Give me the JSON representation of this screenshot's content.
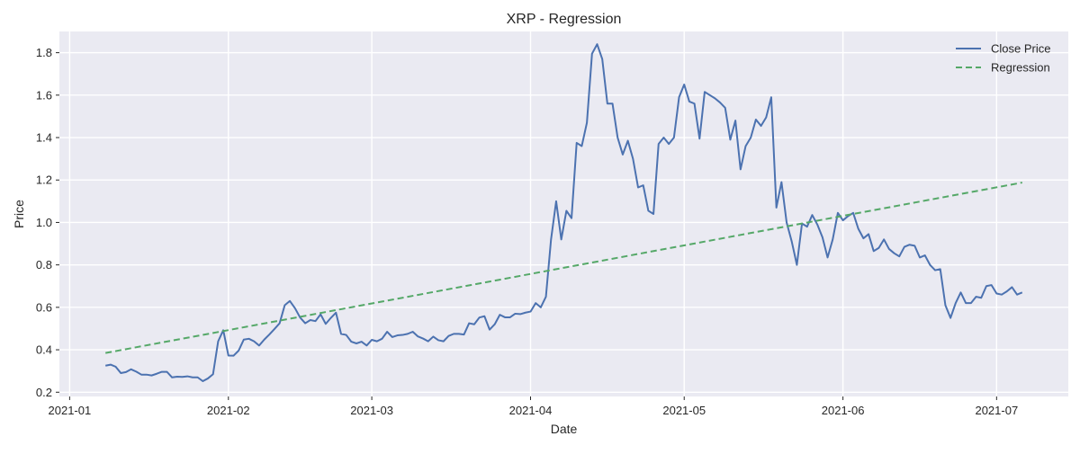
{
  "chart_data": {
    "type": "line",
    "title": "XRP - Regression",
    "xlabel": "Date",
    "ylabel": "Price",
    "xlim": [
      "2020-12-30",
      "2021-07-15"
    ],
    "ylim": [
      0.18,
      1.9
    ],
    "x_ticks": [
      "2021-01",
      "2021-02",
      "2021-03",
      "2021-04",
      "2021-05",
      "2021-06",
      "2021-07"
    ],
    "y_ticks": [
      "0.2",
      "0.4",
      "0.6",
      "0.8",
      "1.0",
      "1.2",
      "1.4",
      "1.6",
      "1.8"
    ],
    "grid": true,
    "legend_position": "top-right",
    "background_color": "#eaeaf2",
    "series": [
      {
        "name": "Close Price",
        "color": "#4c72b0",
        "style": "solid",
        "x": [
          "2021-01-08",
          "2021-01-09",
          "2021-01-10",
          "2021-01-11",
          "2021-01-12",
          "2021-01-13",
          "2021-01-14",
          "2021-01-15",
          "2021-01-16",
          "2021-01-17",
          "2021-01-18",
          "2021-01-19",
          "2021-01-20",
          "2021-01-21",
          "2021-01-22",
          "2021-01-23",
          "2021-01-24",
          "2021-01-25",
          "2021-01-26",
          "2021-01-27",
          "2021-01-28",
          "2021-01-29",
          "2021-01-30",
          "2021-01-31",
          "2021-02-01",
          "2021-02-02",
          "2021-02-03",
          "2021-02-04",
          "2021-02-05",
          "2021-02-06",
          "2021-02-07",
          "2021-02-08",
          "2021-02-09",
          "2021-02-10",
          "2021-02-11",
          "2021-02-12",
          "2021-02-13",
          "2021-02-14",
          "2021-02-15",
          "2021-02-16",
          "2021-02-17",
          "2021-02-18",
          "2021-02-19",
          "2021-02-20",
          "2021-02-21",
          "2021-02-22",
          "2021-02-23",
          "2021-02-24",
          "2021-02-25",
          "2021-02-26",
          "2021-02-27",
          "2021-02-28",
          "2021-03-01",
          "2021-03-02",
          "2021-03-03",
          "2021-03-04",
          "2021-03-05",
          "2021-03-06",
          "2021-03-07",
          "2021-03-08",
          "2021-03-09",
          "2021-03-10",
          "2021-03-11",
          "2021-03-12",
          "2021-03-13",
          "2021-03-14",
          "2021-03-15",
          "2021-03-16",
          "2021-03-17",
          "2021-03-18",
          "2021-03-19",
          "2021-03-20",
          "2021-03-21",
          "2021-03-22",
          "2021-03-23",
          "2021-03-24",
          "2021-03-25",
          "2021-03-26",
          "2021-03-27",
          "2021-03-28",
          "2021-03-29",
          "2021-03-30",
          "2021-03-31",
          "2021-04-01",
          "2021-04-02",
          "2021-04-03",
          "2021-04-04",
          "2021-04-05",
          "2021-04-06",
          "2021-04-07",
          "2021-04-08",
          "2021-04-09",
          "2021-04-10",
          "2021-04-11",
          "2021-04-12",
          "2021-04-13",
          "2021-04-14",
          "2021-04-15",
          "2021-04-16",
          "2021-04-17",
          "2021-04-18",
          "2021-04-19",
          "2021-04-20",
          "2021-04-21",
          "2021-04-22",
          "2021-04-23",
          "2021-04-24",
          "2021-04-25",
          "2021-04-26",
          "2021-04-27",
          "2021-04-28",
          "2021-04-29",
          "2021-04-30",
          "2021-05-01",
          "2021-05-02",
          "2021-05-03",
          "2021-05-04",
          "2021-05-05",
          "2021-05-06",
          "2021-05-07",
          "2021-05-08",
          "2021-05-09",
          "2021-05-10",
          "2021-05-11",
          "2021-05-12",
          "2021-05-13",
          "2021-05-14",
          "2021-05-15",
          "2021-05-16",
          "2021-05-17",
          "2021-05-18",
          "2021-05-19",
          "2021-05-20",
          "2021-05-21",
          "2021-05-22",
          "2021-05-23",
          "2021-05-24",
          "2021-05-25",
          "2021-05-26",
          "2021-05-27",
          "2021-05-28",
          "2021-05-29",
          "2021-05-30",
          "2021-05-31",
          "2021-06-01",
          "2021-06-02",
          "2021-06-03",
          "2021-06-04",
          "2021-06-05",
          "2021-06-06",
          "2021-06-07",
          "2021-06-08",
          "2021-06-09",
          "2021-06-10",
          "2021-06-11",
          "2021-06-12",
          "2021-06-13",
          "2021-06-14",
          "2021-06-15",
          "2021-06-16",
          "2021-06-17",
          "2021-06-18",
          "2021-06-19",
          "2021-06-20",
          "2021-06-21",
          "2021-06-22",
          "2021-06-23",
          "2021-06-24",
          "2021-06-25",
          "2021-06-26",
          "2021-06-27",
          "2021-06-28",
          "2021-06-29",
          "2021-06-30",
          "2021-07-01",
          "2021-07-02",
          "2021-07-03",
          "2021-07-04",
          "2021-07-05",
          "2021-07-06"
        ],
        "values": [
          0.325,
          0.33,
          0.32,
          0.29,
          0.295,
          0.308,
          0.297,
          0.283,
          0.283,
          0.279,
          0.287,
          0.296,
          0.296,
          0.27,
          0.273,
          0.272,
          0.275,
          0.27,
          0.27,
          0.252,
          0.265,
          0.285,
          0.44,
          0.492,
          0.373,
          0.372,
          0.396,
          0.448,
          0.452,
          0.44,
          0.42,
          0.448,
          0.472,
          0.498,
          0.525,
          0.61,
          0.63,
          0.596,
          0.552,
          0.525,
          0.54,
          0.535,
          0.567,
          0.522,
          0.55,
          0.575,
          0.475,
          0.47,
          0.438,
          0.43,
          0.438,
          0.42,
          0.447,
          0.44,
          0.452,
          0.485,
          0.46,
          0.468,
          0.47,
          0.475,
          0.485,
          0.463,
          0.453,
          0.44,
          0.462,
          0.445,
          0.44,
          0.465,
          0.475,
          0.475,
          0.472,
          0.525,
          0.52,
          0.552,
          0.558,
          0.495,
          0.52,
          0.565,
          0.553,
          0.553,
          0.57,
          0.568,
          0.575,
          0.58,
          0.62,
          0.6,
          0.65,
          0.92,
          1.1,
          0.92,
          1.055,
          1.02,
          1.375,
          1.36,
          1.47,
          1.795,
          1.84,
          1.77,
          1.56,
          1.56,
          1.4,
          1.32,
          1.385,
          1.3,
          1.165,
          1.175,
          1.055,
          1.04,
          1.37,
          1.4,
          1.37,
          1.4,
          1.59,
          1.65,
          1.57,
          1.56,
          1.395,
          1.615,
          1.6,
          1.585,
          1.565,
          1.54,
          1.39,
          1.48,
          1.25,
          1.36,
          1.4,
          1.485,
          1.455,
          1.495,
          1.59,
          1.07,
          1.19,
          1.0,
          0.91,
          0.8,
          0.995,
          0.98,
          1.035,
          0.99,
          0.93,
          0.835,
          0.92,
          1.045,
          1.01,
          1.03,
          1.045,
          0.97,
          0.925,
          0.945,
          0.865,
          0.88,
          0.92,
          0.875,
          0.855,
          0.84,
          0.885,
          0.895,
          0.89,
          0.835,
          0.845,
          0.8,
          0.775,
          0.78,
          0.61,
          0.55,
          0.62,
          0.67,
          0.62,
          0.62,
          0.65,
          0.645,
          0.7,
          0.705,
          0.665,
          0.66,
          0.675,
          0.695,
          0.66,
          0.67
        ]
      },
      {
        "name": "Regression",
        "color": "#55a868",
        "style": "dashed",
        "x": [
          "2021-01-08",
          "2021-07-06"
        ],
        "values": [
          0.385,
          1.188
        ]
      }
    ]
  }
}
